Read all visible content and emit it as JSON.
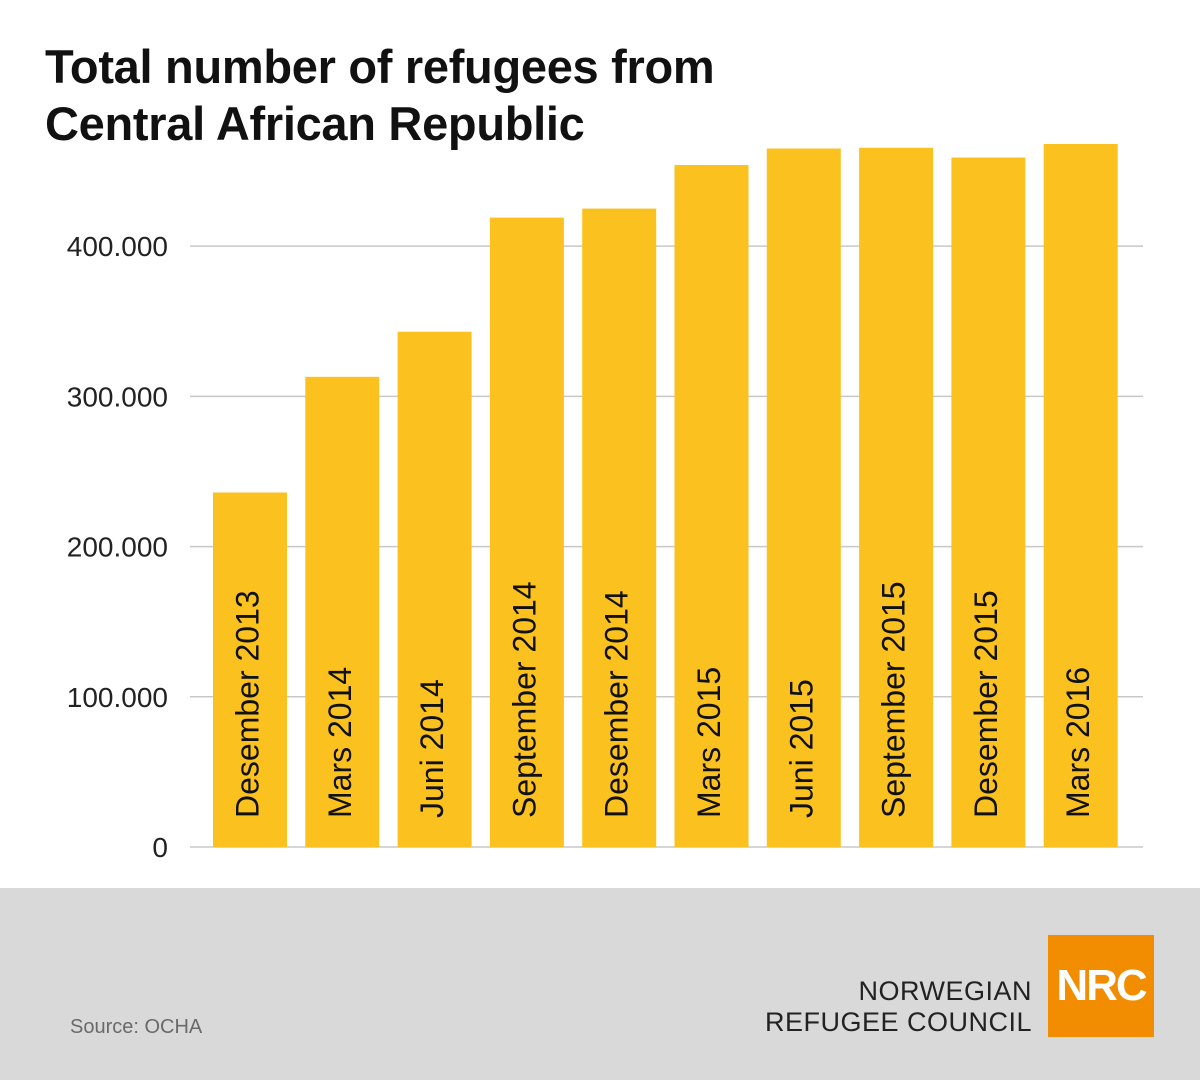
{
  "title_lines": [
    "Total number of refugees from",
    "Central African Republic"
  ],
  "chart_data": {
    "type": "bar",
    "title": "Total number of refugees from Central African Republic",
    "categories": [
      "Desember 2013",
      "Mars 2014",
      "Juni 2014",
      "September 2014",
      "Desember 2014",
      "Mars 2015",
      "Juni 2015",
      "September 2015",
      "Desember 2015",
      "Mars 2016"
    ],
    "values": [
      236000,
      313000,
      343000,
      419000,
      425000,
      454000,
      465000,
      465500,
      459000,
      468000
    ],
    "y_ticks": [
      0,
      100000,
      200000,
      300000,
      400000
    ],
    "y_tick_labels": [
      "0",
      "100.000",
      "200.000",
      "300.000",
      "400.000"
    ],
    "ylim": [
      0,
      468000
    ],
    "xlabel": "",
    "ylabel": "",
    "grid": true,
    "bar_color": "#fbc21f",
    "grid_color": "#c8c8c8",
    "label_color": "#111111"
  },
  "footer": {
    "source": "Source: OCHA",
    "org_line1": "NORWEGIAN",
    "org_line2": "REFUGEE COUNCIL",
    "logo_text": "NRC",
    "logo_color": "#f28c00"
  }
}
